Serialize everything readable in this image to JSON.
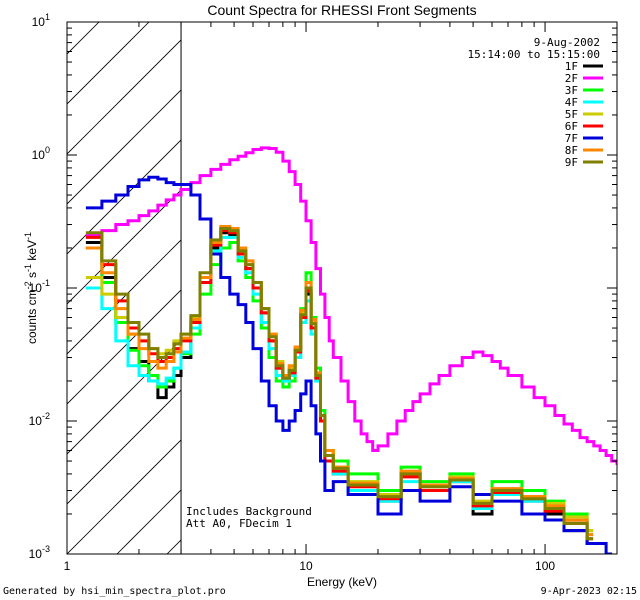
{
  "chart_data": {
    "type": "line",
    "title": "Count Spectra for RHESSI Front Segments",
    "xlabel": "Energy (keV)",
    "ylabel": "counts cm-2 s-1 keV-1",
    "xscale": "log",
    "yscale": "log",
    "xlim": [
      1,
      200
    ],
    "ylim": [
      0.001,
      10
    ],
    "x_ticks": [
      "1",
      "10",
      "100"
    ],
    "y_ticks": [
      "10-3",
      "10-2",
      "10-1",
      "100",
      "101"
    ],
    "date": "9-Aug-2002",
    "time_range": "15:14:00 to 15:15:00",
    "shaded_region_max_energy": 3,
    "annotations": [
      "Includes Background",
      "Att A0, FDecim 1"
    ],
    "legend_position": "top-right",
    "series": [
      {
        "name": "1F",
        "color": "#000000",
        "x": [
          1.2,
          1.4,
          1.6,
          1.8,
          2.0,
          2.2,
          2.4,
          2.6,
          2.8,
          3.0,
          3.3,
          3.6,
          4.0,
          4.4,
          4.8,
          5.2,
          5.6,
          6.0,
          6.5,
          7.0,
          7.5,
          8.0,
          8.5,
          9.0,
          9.5,
          10.0,
          10.5,
          11.0,
          11.5,
          12.0,
          13,
          15,
          20,
          25,
          30,
          40,
          50,
          60,
          80,
          100,
          120,
          150
        ],
        "values": [
          0.22,
          0.12,
          0.06,
          0.035,
          0.028,
          0.02,
          0.015,
          0.018,
          0.022,
          0.03,
          0.05,
          0.12,
          0.2,
          0.26,
          0.25,
          0.18,
          0.14,
          0.1,
          0.065,
          0.04,
          0.025,
          0.02,
          0.024,
          0.035,
          0.06,
          0.09,
          0.05,
          0.02,
          0.01,
          0.005,
          0.004,
          0.003,
          0.0025,
          0.004,
          0.003,
          0.0035,
          0.002,
          0.003,
          0.0025,
          0.002,
          0.0015,
          0.0012
        ]
      },
      {
        "name": "2F",
        "color": "#ff00ff",
        "x": [
          1.2,
          1.4,
          1.6,
          1.8,
          2.0,
          2.2,
          2.4,
          2.6,
          2.8,
          3.0,
          3.3,
          3.6,
          4.0,
          4.4,
          4.8,
          5.2,
          5.6,
          6.0,
          6.5,
          7.0,
          7.5,
          8.0,
          8.5,
          9.0,
          9.5,
          10.0,
          10.5,
          11.0,
          11.5,
          12.0,
          12.5,
          13,
          14,
          15,
          16,
          17,
          18,
          19,
          20,
          22,
          24,
          26,
          28,
          30,
          33,
          36,
          40,
          45,
          50,
          55,
          60,
          65,
          70,
          80,
          90,
          100,
          110,
          120,
          130,
          140,
          150,
          160,
          170,
          180,
          190,
          200
        ],
        "values": [
          0.25,
          0.27,
          0.3,
          0.32,
          0.35,
          0.38,
          0.42,
          0.46,
          0.5,
          0.55,
          0.62,
          0.7,
          0.78,
          0.85,
          0.92,
          0.98,
          1.04,
          1.1,
          1.13,
          1.12,
          1.05,
          0.9,
          0.75,
          0.6,
          0.45,
          0.32,
          0.22,
          0.14,
          0.09,
          0.06,
          0.04,
          0.03,
          0.02,
          0.014,
          0.01,
          0.008,
          0.007,
          0.006,
          0.0065,
          0.008,
          0.01,
          0.012,
          0.014,
          0.016,
          0.019,
          0.022,
          0.026,
          0.03,
          0.033,
          0.031,
          0.028,
          0.025,
          0.022,
          0.018,
          0.015,
          0.013,
          0.011,
          0.0095,
          0.0085,
          0.0075,
          0.007,
          0.0065,
          0.006,
          0.0055,
          0.005,
          0.0048
        ]
      },
      {
        "name": "3F",
        "color": "#00ff00",
        "x": [
          1.2,
          1.4,
          1.6,
          1.8,
          2.0,
          2.2,
          2.4,
          2.6,
          2.8,
          3.0,
          3.3,
          3.6,
          4.0,
          4.4,
          4.8,
          5.2,
          5.6,
          6.0,
          6.5,
          7.0,
          7.5,
          8.0,
          8.5,
          9.0,
          9.5,
          10.0,
          10.5,
          11.0,
          11.5,
          12.0,
          13,
          15,
          20,
          25,
          30,
          40,
          50,
          60,
          80,
          100,
          120,
          150
        ],
        "values": [
          0.2,
          0.11,
          0.055,
          0.034,
          0.026,
          0.022,
          0.018,
          0.02,
          0.025,
          0.032,
          0.045,
          0.09,
          0.15,
          0.2,
          0.22,
          0.16,
          0.12,
          0.08,
          0.05,
          0.03,
          0.02,
          0.018,
          0.02,
          0.03,
          0.07,
          0.13,
          0.06,
          0.025,
          0.012,
          0.006,
          0.005,
          0.004,
          0.003,
          0.0045,
          0.0035,
          0.004,
          0.0028,
          0.0035,
          0.003,
          0.0025,
          0.002,
          0.0015
        ]
      },
      {
        "name": "4F",
        "color": "#00ffff",
        "x": [
          1.2,
          1.4,
          1.6,
          1.8,
          2.0,
          2.2,
          2.4,
          2.6,
          2.8,
          3.0,
          3.3,
          3.6,
          4.0,
          4.4,
          4.8,
          5.2,
          5.6,
          6.0,
          6.5,
          7.0,
          7.5,
          8.0,
          8.5,
          9.0,
          9.5,
          10.0,
          10.5,
          11.0,
          11.5,
          12.0,
          13,
          15,
          20,
          25,
          30,
          40,
          50,
          60,
          80,
          100,
          120,
          150
        ],
        "values": [
          0.1,
          0.07,
          0.04,
          0.026,
          0.022,
          0.02,
          0.019,
          0.021,
          0.025,
          0.033,
          0.05,
          0.11,
          0.19,
          0.24,
          0.24,
          0.17,
          0.13,
          0.09,
          0.055,
          0.035,
          0.022,
          0.02,
          0.022,
          0.03,
          0.055,
          0.08,
          0.045,
          0.02,
          0.01,
          0.005,
          0.004,
          0.003,
          0.0025,
          0.0035,
          0.003,
          0.0035,
          0.0022,
          0.0028,
          0.0025,
          0.0022,
          0.0018,
          0.0014
        ]
      },
      {
        "name": "5F",
        "color": "#cccc00",
        "x": [
          1.2,
          1.4,
          1.6,
          1.8,
          2.0,
          2.2,
          2.4,
          2.6,
          2.8,
          3.0,
          3.3,
          3.6,
          4.0,
          4.4,
          4.8,
          5.2,
          5.6,
          6.0,
          6.5,
          7.0,
          7.5,
          8.0,
          8.5,
          9.0,
          9.5,
          10.0,
          10.5,
          11.0,
          11.5,
          12.0,
          13,
          15,
          20,
          25,
          30,
          40,
          50,
          60,
          80,
          100,
          120,
          150
        ],
        "values": [
          0.12,
          0.09,
          0.06,
          0.045,
          0.04,
          0.035,
          0.032,
          0.034,
          0.04,
          0.045,
          0.06,
          0.12,
          0.22,
          0.28,
          0.27,
          0.19,
          0.15,
          0.11,
          0.07,
          0.045,
          0.028,
          0.022,
          0.025,
          0.035,
          0.065,
          0.1,
          0.055,
          0.022,
          0.011,
          0.006,
          0.0045,
          0.0035,
          0.0028,
          0.004,
          0.0032,
          0.0038,
          0.0025,
          0.003,
          0.0027,
          0.0024,
          0.0019,
          0.0015
        ]
      },
      {
        "name": "6F",
        "color": "#ff0000",
        "x": [
          1.2,
          1.4,
          1.6,
          1.8,
          2.0,
          2.2,
          2.4,
          2.6,
          2.8,
          3.0,
          3.3,
          3.6,
          4.0,
          4.4,
          4.8,
          5.2,
          5.6,
          6.0,
          6.5,
          7.0,
          7.5,
          8.0,
          8.5,
          9.0,
          9.5,
          10.0,
          10.5,
          11.0,
          11.5,
          12.0,
          13,
          15,
          20,
          25,
          30,
          40,
          50,
          60,
          80,
          100,
          120,
          150
        ],
        "values": [
          0.24,
          0.15,
          0.08,
          0.05,
          0.04,
          0.032,
          0.028,
          0.03,
          0.035,
          0.04,
          0.055,
          0.11,
          0.21,
          0.27,
          0.26,
          0.18,
          0.14,
          0.1,
          0.065,
          0.04,
          0.025,
          0.021,
          0.023,
          0.033,
          0.06,
          0.095,
          0.05,
          0.021,
          0.01,
          0.005,
          0.0042,
          0.0032,
          0.0026,
          0.0038,
          0.003,
          0.0036,
          0.0023,
          0.0029,
          0.0026,
          0.0021,
          0.0017,
          0.0013
        ]
      },
      {
        "name": "7F",
        "color": "#0000dd",
        "x": [
          1.2,
          1.4,
          1.6,
          1.8,
          2.0,
          2.2,
          2.4,
          2.6,
          2.8,
          3.0,
          3.3,
          3.6,
          4.0,
          4.4,
          4.8,
          5.2,
          5.6,
          6.0,
          6.5,
          7.0,
          7.5,
          8.0,
          8.5,
          9.0,
          9.5,
          10.0,
          10.5,
          11.0,
          11.5,
          12.0,
          13,
          15,
          20,
          25,
          30,
          40,
          50,
          60,
          80,
          100,
          120,
          150,
          180
        ],
        "values": [
          0.4,
          0.45,
          0.5,
          0.58,
          0.65,
          0.68,
          0.66,
          0.62,
          0.6,
          0.6,
          0.5,
          0.33,
          0.18,
          0.12,
          0.09,
          0.075,
          0.055,
          0.035,
          0.02,
          0.013,
          0.01,
          0.0085,
          0.01,
          0.012,
          0.016,
          0.02,
          0.013,
          0.008,
          0.005,
          0.003,
          0.0035,
          0.0028,
          0.002,
          0.003,
          0.0025,
          0.0032,
          0.0028,
          0.0025,
          0.002,
          0.0018,
          0.0015,
          0.0012,
          0.001
        ]
      },
      {
        "name": "8F",
        "color": "#ff8800",
        "x": [
          1.2,
          1.4,
          1.6,
          1.8,
          2.0,
          2.2,
          2.4,
          2.6,
          2.8,
          3.0,
          3.3,
          3.6,
          4.0,
          4.4,
          4.8,
          5.2,
          5.6,
          6.0,
          6.5,
          7.0,
          7.5,
          8.0,
          8.5,
          9.0,
          9.5,
          10.0,
          10.5,
          11.0,
          11.5,
          12.0,
          13,
          15,
          20,
          25,
          30,
          40,
          50,
          60,
          80,
          100,
          120,
          150
        ],
        "values": [
          0.2,
          0.13,
          0.07,
          0.045,
          0.035,
          0.028,
          0.025,
          0.028,
          0.033,
          0.042,
          0.058,
          0.12,
          0.22,
          0.29,
          0.28,
          0.2,
          0.16,
          0.11,
          0.07,
          0.045,
          0.027,
          0.022,
          0.026,
          0.036,
          0.068,
          0.11,
          0.058,
          0.023,
          0.011,
          0.006,
          0.0045,
          0.0034,
          0.0027,
          0.0042,
          0.0033,
          0.0037,
          0.0024,
          0.0031,
          0.0027,
          0.0023,
          0.0018,
          0.0014
        ]
      },
      {
        "name": "9F",
        "color": "#808000",
        "x": [
          1.2,
          1.4,
          1.6,
          1.8,
          2.0,
          2.2,
          2.4,
          2.6,
          2.8,
          3.0,
          3.3,
          3.6,
          4.0,
          4.4,
          4.8,
          5.2,
          5.6,
          6.0,
          6.5,
          7.0,
          7.5,
          8.0,
          8.5,
          9.0,
          9.5,
          10.0,
          10.5,
          11.0,
          11.5,
          12.0,
          13,
          15,
          20,
          25,
          30,
          40,
          50,
          60,
          80,
          100,
          120,
          150
        ],
        "values": [
          0.26,
          0.16,
          0.09,
          0.055,
          0.045,
          0.035,
          0.03,
          0.032,
          0.038,
          0.045,
          0.062,
          0.13,
          0.23,
          0.28,
          0.27,
          0.19,
          0.15,
          0.11,
          0.07,
          0.043,
          0.026,
          0.021,
          0.024,
          0.034,
          0.063,
          0.1,
          0.054,
          0.022,
          0.011,
          0.0055,
          0.0044,
          0.0033,
          0.0027,
          0.004,
          0.0032,
          0.0036,
          0.0024,
          0.003,
          0.0026,
          0.0022,
          0.0017,
          0.0013
        ]
      }
    ]
  },
  "footer": {
    "generated_by": "Generated by hsi_min_spectra_plot.pro",
    "timestamp": "9-Apr-2023 02:15"
  }
}
